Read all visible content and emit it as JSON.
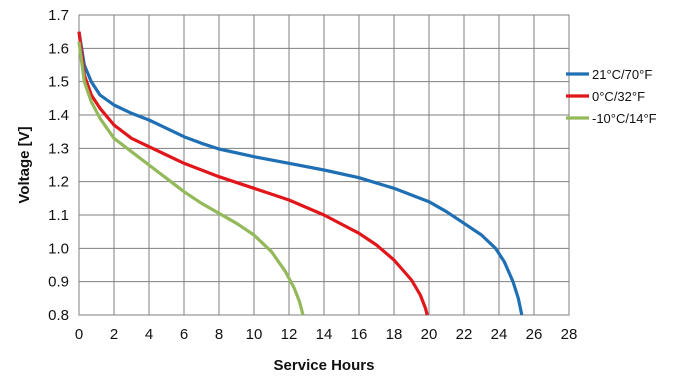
{
  "chart_data": {
    "type": "line",
    "title": "",
    "xlabel": "Service Hours",
    "ylabel": "Voltage [V]",
    "xlim": [
      0,
      28
    ],
    "ylim": [
      0.8,
      1.7
    ],
    "x_ticks": [
      "0",
      "2",
      "4",
      "6",
      "8",
      "10",
      "12",
      "14",
      "16",
      "18",
      "20",
      "22",
      "24",
      "26",
      "28"
    ],
    "y_ticks": [
      "0.8",
      "0.9",
      "1.0",
      "1.1",
      "1.2",
      "1.3",
      "1.4",
      "1.5",
      "1.6",
      "1.7"
    ],
    "grid": true,
    "legend_position": "right",
    "series": [
      {
        "name": "21°C/70°F",
        "color": "#1f6fb5",
        "points": [
          [
            0,
            1.65
          ],
          [
            0.3,
            1.55
          ],
          [
            0.7,
            1.5
          ],
          [
            1.2,
            1.46
          ],
          [
            2,
            1.43
          ],
          [
            3,
            1.405
          ],
          [
            4,
            1.385
          ],
          [
            5,
            1.36
          ],
          [
            6,
            1.335
          ],
          [
            7,
            1.315
          ],
          [
            8,
            1.298
          ],
          [
            10,
            1.275
          ],
          [
            12,
            1.255
          ],
          [
            14,
            1.235
          ],
          [
            16,
            1.212
          ],
          [
            18,
            1.18
          ],
          [
            20,
            1.14
          ],
          [
            21,
            1.11
          ],
          [
            22,
            1.075
          ],
          [
            23,
            1.04
          ],
          [
            23.8,
            1.0
          ],
          [
            24.3,
            0.96
          ],
          [
            24.8,
            0.9
          ],
          [
            25.1,
            0.85
          ],
          [
            25.3,
            0.8
          ]
        ]
      },
      {
        "name": "0°C/32°F",
        "color": "#e0161b",
        "points": [
          [
            0,
            1.65
          ],
          [
            0.3,
            1.52
          ],
          [
            0.7,
            1.46
          ],
          [
            1.2,
            1.42
          ],
          [
            2,
            1.37
          ],
          [
            3,
            1.33
          ],
          [
            4,
            1.305
          ],
          [
            5,
            1.28
          ],
          [
            6,
            1.255
          ],
          [
            7,
            1.235
          ],
          [
            8,
            1.215
          ],
          [
            10,
            1.18
          ],
          [
            12,
            1.145
          ],
          [
            14,
            1.1
          ],
          [
            16,
            1.045
          ],
          [
            17,
            1.01
          ],
          [
            18,
            0.965
          ],
          [
            19,
            0.905
          ],
          [
            19.5,
            0.86
          ],
          [
            19.8,
            0.82
          ],
          [
            19.9,
            0.8
          ]
        ]
      },
      {
        "name": "-10°C/14°F",
        "color": "#93b95a",
        "points": [
          [
            0,
            1.62
          ],
          [
            0.3,
            1.5
          ],
          [
            0.7,
            1.44
          ],
          [
            1.2,
            1.39
          ],
          [
            2,
            1.33
          ],
          [
            3,
            1.29
          ],
          [
            4,
            1.25
          ],
          [
            5,
            1.21
          ],
          [
            6,
            1.17
          ],
          [
            7,
            1.135
          ],
          [
            8,
            1.105
          ],
          [
            9,
            1.075
          ],
          [
            10,
            1.04
          ],
          [
            11,
            0.99
          ],
          [
            11.8,
            0.93
          ],
          [
            12.3,
            0.88
          ],
          [
            12.6,
            0.84
          ],
          [
            12.8,
            0.8
          ]
        ]
      }
    ]
  }
}
